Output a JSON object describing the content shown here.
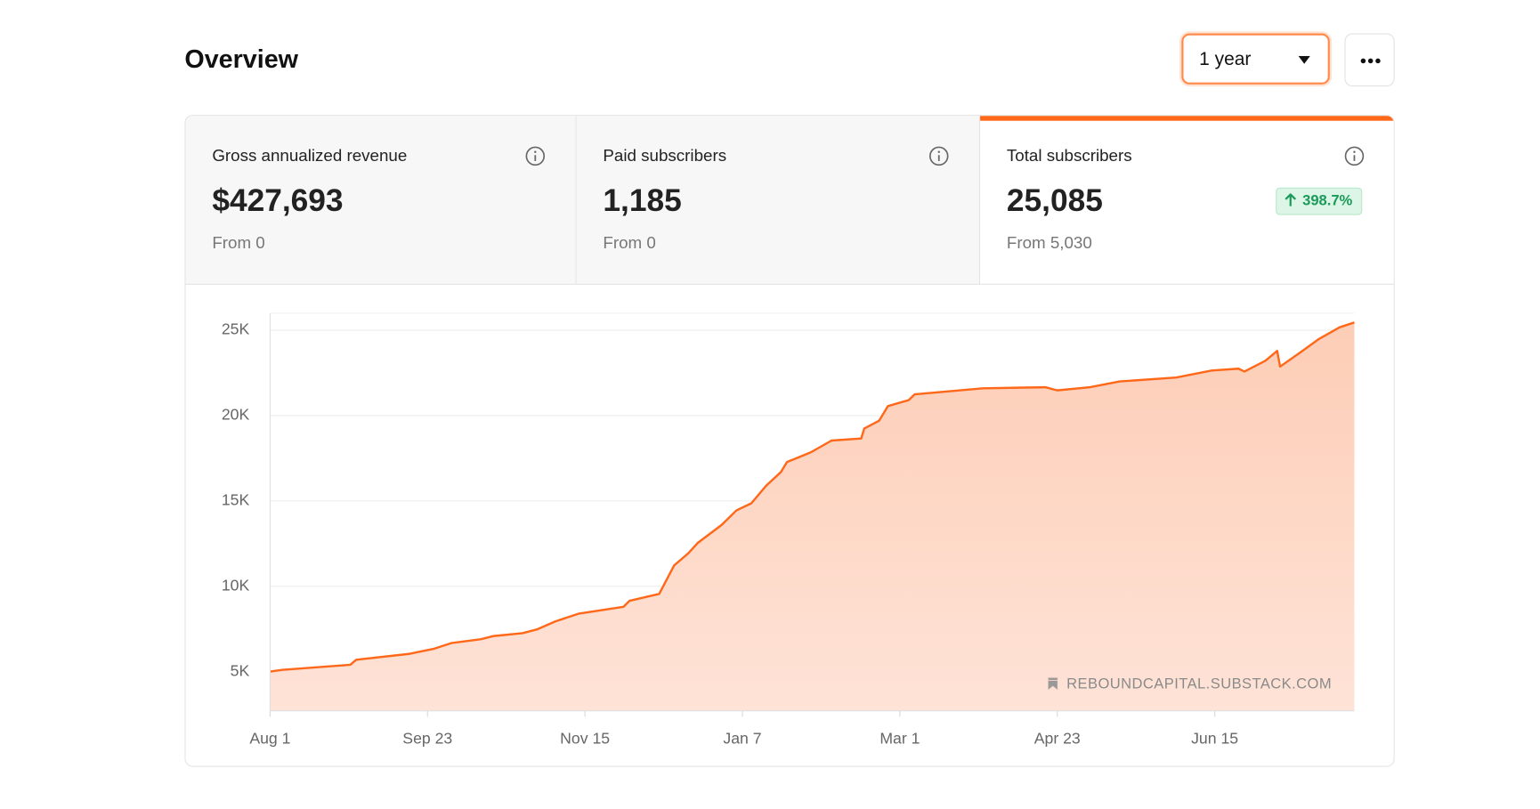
{
  "header": {
    "title": "Overview",
    "range": "1 year"
  },
  "cards": [
    {
      "label": "Gross annualized revenue",
      "value": "$427,693",
      "from": "From 0"
    },
    {
      "label": "Paid subscribers",
      "value": "1,185",
      "from": "From 0"
    },
    {
      "label": "Total subscribers",
      "value": "25,085",
      "from": "From 5,030",
      "change": "398.7%"
    }
  ],
  "chart_data": {
    "type": "area",
    "x": [
      0,
      4,
      27,
      29,
      47,
      55,
      61,
      71,
      75,
      85,
      90,
      96,
      104,
      119,
      121,
      131,
      136,
      141,
      144,
      152,
      157,
      162,
      167,
      172,
      174,
      182,
      189,
      199,
      200,
      205,
      208,
      215,
      217,
      240,
      261,
      265,
      276,
      286,
      305,
      317,
      326,
      328,
      335,
      339,
      340,
      347,
      353,
      360,
      365
    ],
    "values": [
      5000,
      5100,
      5400,
      5690,
      6040,
      6330,
      6670,
      6900,
      7080,
      7250,
      7480,
      7940,
      8400,
      8800,
      9150,
      9550,
      11220,
      11970,
      12550,
      13590,
      14450,
      14860,
      15890,
      16700,
      17280,
      17850,
      18540,
      18660,
      19240,
      19700,
      20560,
      20910,
      21250,
      21600,
      21660,
      21480,
      21660,
      22000,
      22230,
      22640,
      22750,
      22580,
      23210,
      23790,
      22870,
      23730,
      24480,
      25170,
      25460
    ],
    "color": "#ff6719",
    "xlim": [
      0,
      365
    ],
    "xticks": [
      {
        "value": 0,
        "label": "Aug 1"
      },
      {
        "value": 53,
        "label": "Sep 23"
      },
      {
        "value": 106,
        "label": "Nov 15"
      },
      {
        "value": 159,
        "label": "Jan 7"
      },
      {
        "value": 212,
        "label": "Mar 1"
      },
      {
        "value": 265,
        "label": "Apr 23"
      },
      {
        "value": 318,
        "label": "Jun 15"
      }
    ],
    "ylim": [
      2700,
      26000
    ],
    "yticks": [
      {
        "value": 5000,
        "label": "5K"
      },
      {
        "value": 10000,
        "label": "10K"
      },
      {
        "value": 15000,
        "label": "15K"
      },
      {
        "value": 20000,
        "label": "20K"
      },
      {
        "value": 25000,
        "label": "25K"
      }
    ],
    "grid": true,
    "watermark": "REBOUNDCAPITAL.SUBSTACK.COM"
  }
}
